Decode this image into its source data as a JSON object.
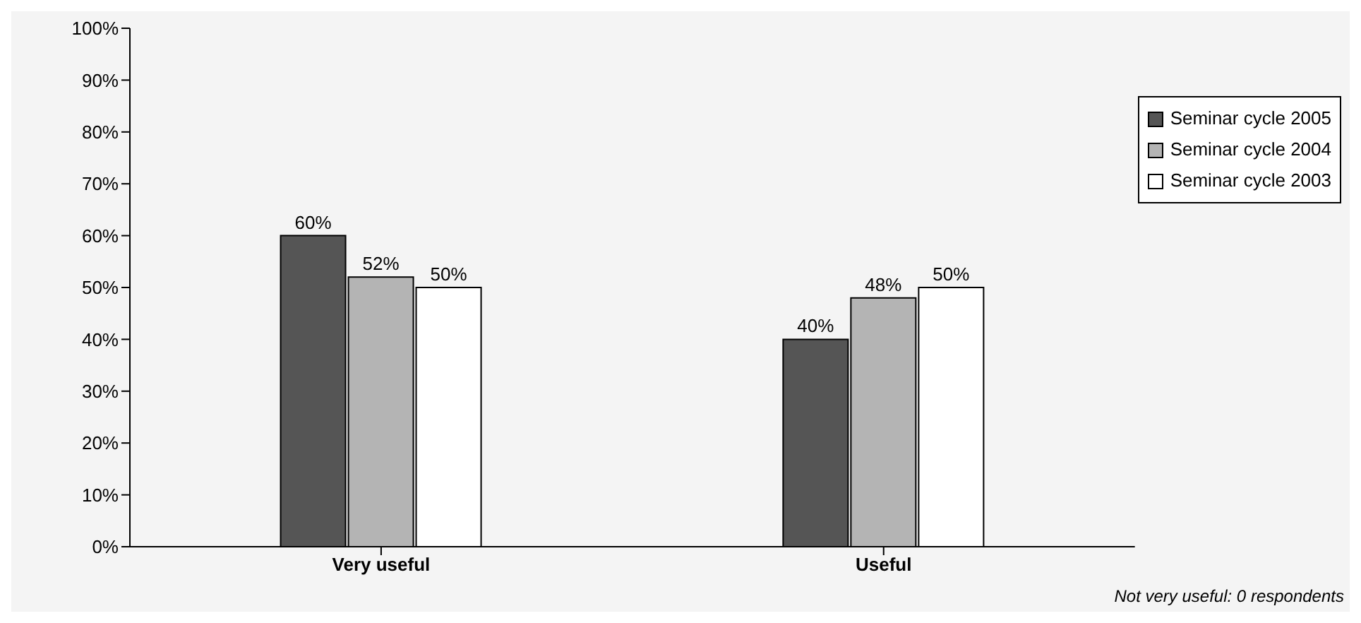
{
  "chart_data": {
    "type": "bar",
    "categories": [
      "Very useful",
      "Useful"
    ],
    "series": [
      {
        "name": "Seminar cycle 2005",
        "color": "#555555",
        "values": [
          60,
          40
        ],
        "value_labels": [
          "60%",
          "40%"
        ]
      },
      {
        "name": "Seminar cycle 2004",
        "color": "#b4b4b4",
        "values": [
          52,
          48
        ],
        "value_labels": [
          "52%",
          "48%"
        ]
      },
      {
        "name": "Seminar cycle 2003",
        "color": "#ffffff",
        "values": [
          50,
          50
        ],
        "value_labels": [
          "50%",
          "50%"
        ]
      }
    ],
    "ylim": [
      0,
      100
    ],
    "yticks": [
      {
        "value": 0,
        "label": "0%"
      },
      {
        "value": 10,
        "label": "10%"
      },
      {
        "value": 20,
        "label": "20%"
      },
      {
        "value": 30,
        "label": "30%"
      },
      {
        "value": 40,
        "label": "40%"
      },
      {
        "value": 50,
        "label": "50%"
      },
      {
        "value": 60,
        "label": "60%"
      },
      {
        "value": 70,
        "label": "70%"
      },
      {
        "value": 80,
        "label": "80%"
      },
      {
        "value": 90,
        "label": "90%"
      },
      {
        "value": 100,
        "label": "100%"
      }
    ],
    "grid": false,
    "legend": "top right",
    "annotations": [
      "Not very useful: 0 respondents"
    ]
  }
}
